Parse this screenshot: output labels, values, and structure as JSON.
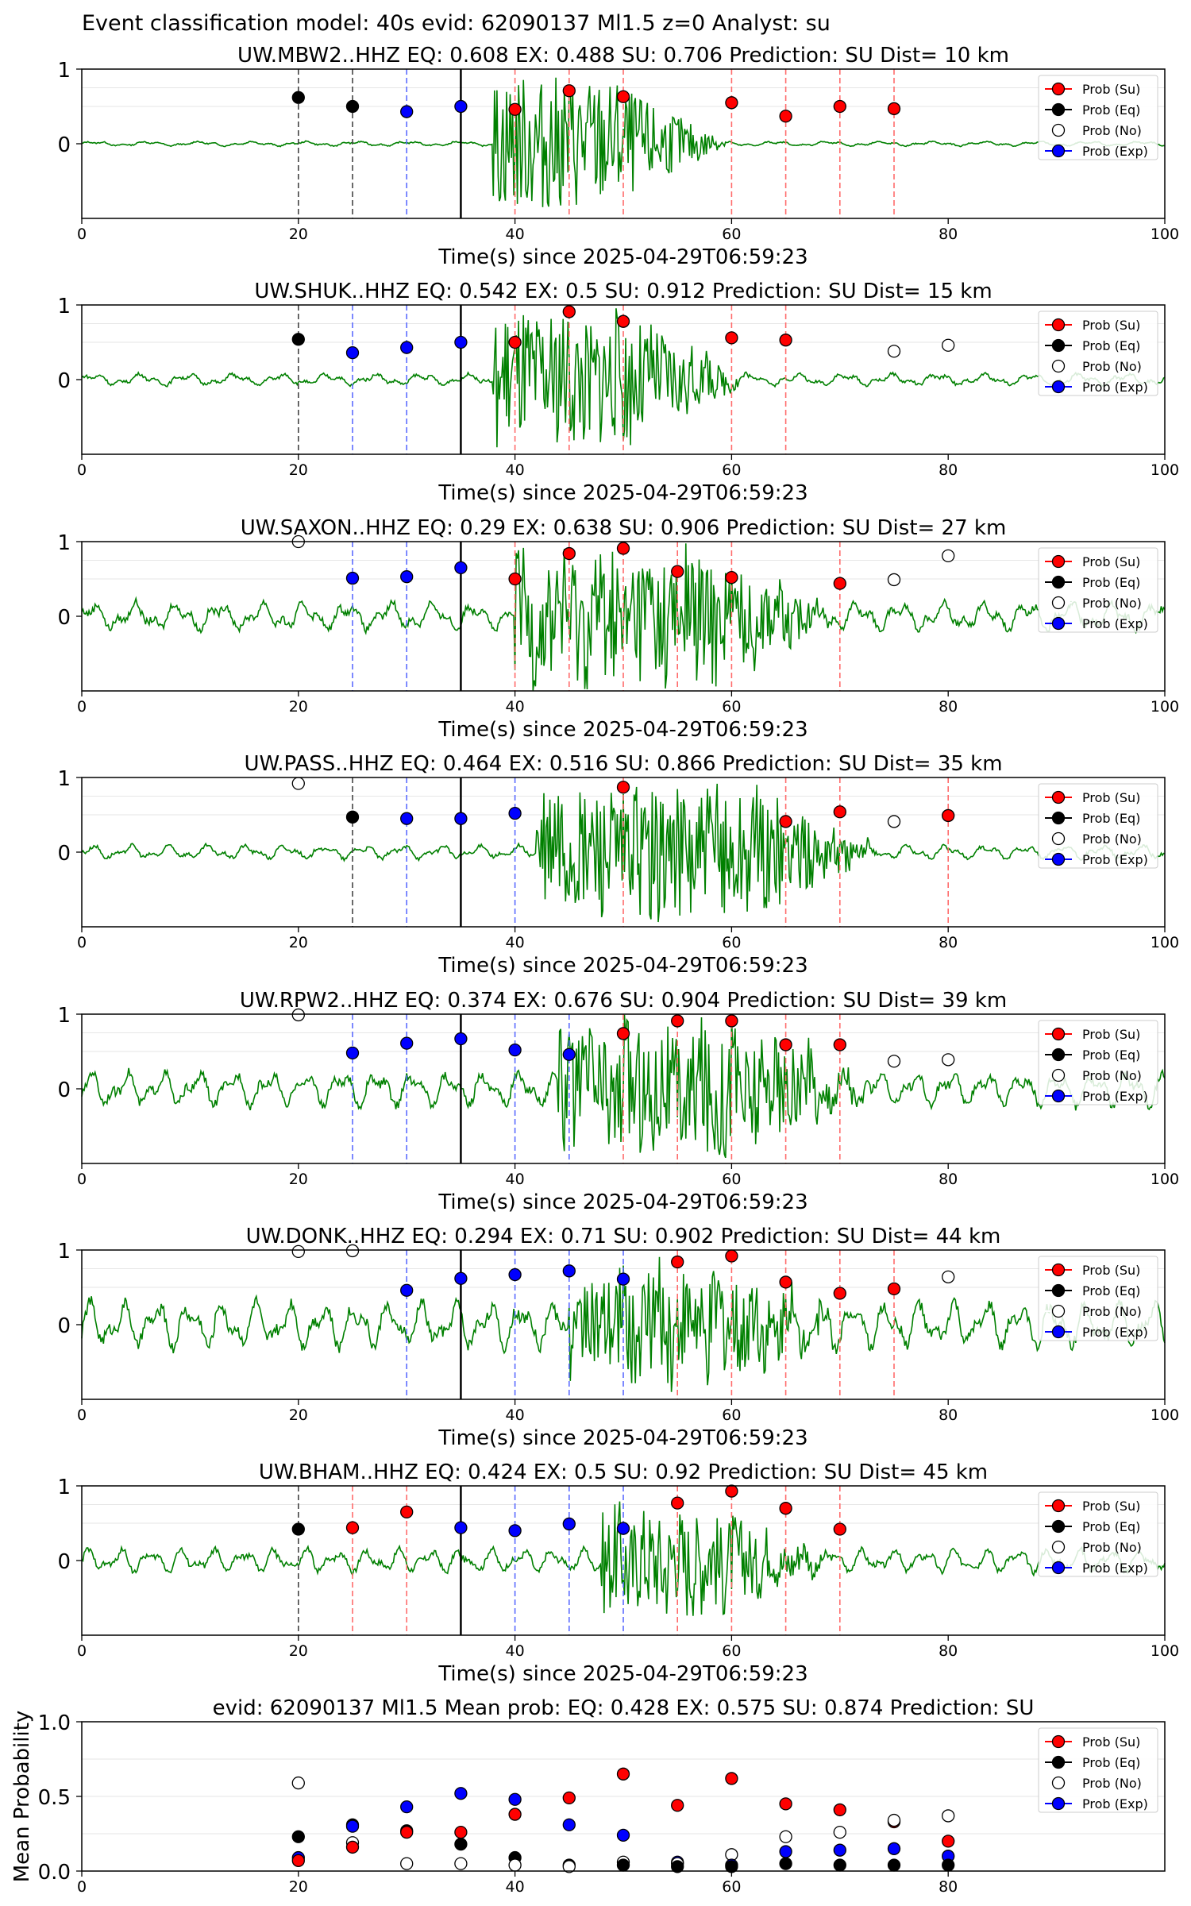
{
  "figure_title": "Event classification model: 40s evid: 62090137 Ml1.5 z=0 Analyst: su",
  "colors": {
    "su": "#ff0000",
    "eq": "#000000",
    "no": "#ffffff",
    "exp": "#0000ff",
    "waveform": "#008000",
    "su_line": "#ff6b6b",
    "exp_line": "#5b6bff",
    "eq_line": "#444444"
  },
  "legend": [
    "Prob (Su)",
    "Prob (Eq)",
    "Prob (No)",
    "Prob (Exp)"
  ],
  "xlabel": "Time(s) since 2025-04-29T06:59:23",
  "xticks": [
    0,
    20,
    40,
    60,
    80,
    100
  ],
  "chart_data": [
    {
      "type": "scatter",
      "title": "UW.MBW2..HHZ   EQ: 0.608  EX: 0.488  SU: 0.706   Prediction: SU    Dist= 10 km",
      "xlim": [
        0,
        100
      ],
      "ylim": [
        -1,
        1
      ],
      "yticks": [
        0,
        1
      ],
      "noise": 0.02,
      "burst": [
        38,
        48,
        0.9
      ],
      "lines": [
        {
          "x": 20,
          "c": "eq"
        },
        {
          "x": 25,
          "c": "eq"
        },
        {
          "x": 30,
          "c": "exp"
        },
        {
          "x": 35,
          "c": "solid"
        },
        {
          "x": 40,
          "c": "su"
        },
        {
          "x": 45,
          "c": "su"
        },
        {
          "x": 50,
          "c": "su"
        },
        {
          "x": 60,
          "c": "su"
        },
        {
          "x": 65,
          "c": "su"
        },
        {
          "x": 70,
          "c": "su"
        },
        {
          "x": 75,
          "c": "su"
        }
      ],
      "points": [
        {
          "x": 20,
          "y": 0.62,
          "c": "eq"
        },
        {
          "x": 25,
          "y": 0.5,
          "c": "eq"
        },
        {
          "x": 30,
          "y": 0.43,
          "c": "exp"
        },
        {
          "x": 35,
          "y": 0.5,
          "c": "exp"
        },
        {
          "x": 40,
          "y": 0.46,
          "c": "su"
        },
        {
          "x": 45,
          "y": 0.71,
          "c": "su"
        },
        {
          "x": 50,
          "y": 0.63,
          "c": "su"
        },
        {
          "x": 60,
          "y": 0.55,
          "c": "su"
        },
        {
          "x": 65,
          "y": 0.37,
          "c": "su"
        },
        {
          "x": 70,
          "y": 0.5,
          "c": "su"
        },
        {
          "x": 75,
          "y": 0.47,
          "c": "su"
        }
      ]
    },
    {
      "type": "scatter",
      "title": "UW.SHUK..HHZ   EQ: 0.542  EX: 0.5  SU: 0.912   Prediction: SU    Dist= 15 km",
      "xlim": [
        0,
        100
      ],
      "ylim": [
        -1,
        1
      ],
      "yticks": [
        0,
        1
      ],
      "noise": 0.05,
      "burst": [
        38,
        50,
        0.9
      ],
      "lines": [
        {
          "x": 20,
          "c": "eq"
        },
        {
          "x": 25,
          "c": "exp"
        },
        {
          "x": 30,
          "c": "exp"
        },
        {
          "x": 35,
          "c": "solid"
        },
        {
          "x": 40,
          "c": "su"
        },
        {
          "x": 45,
          "c": "su"
        },
        {
          "x": 50,
          "c": "su"
        },
        {
          "x": 60,
          "c": "su"
        },
        {
          "x": 65,
          "c": "su"
        }
      ],
      "points": [
        {
          "x": 20,
          "y": 0.54,
          "c": "eq"
        },
        {
          "x": 25,
          "y": 0.36,
          "c": "exp"
        },
        {
          "x": 30,
          "y": 0.43,
          "c": "exp"
        },
        {
          "x": 35,
          "y": 0.5,
          "c": "exp"
        },
        {
          "x": 40,
          "y": 0.5,
          "c": "su"
        },
        {
          "x": 45,
          "y": 0.91,
          "c": "su"
        },
        {
          "x": 50,
          "y": 0.78,
          "c": "su"
        },
        {
          "x": 60,
          "y": 0.56,
          "c": "su"
        },
        {
          "x": 65,
          "y": 0.53,
          "c": "su"
        },
        {
          "x": 75,
          "y": 0.38,
          "c": "no"
        },
        {
          "x": 80,
          "y": 0.46,
          "c": "no"
        }
      ]
    },
    {
      "type": "scatter",
      "title": "UW.SAXON..HHZ   EQ: 0.29  EX: 0.638  SU: 0.906   Prediction: SU    Dist= 27 km",
      "xlim": [
        0,
        100
      ],
      "ylim": [
        -1,
        1
      ],
      "yticks": [
        0,
        1
      ],
      "noise": 0.12,
      "burst": [
        40,
        58,
        0.9
      ],
      "lines": [
        {
          "x": 25,
          "c": "exp"
        },
        {
          "x": 30,
          "c": "exp"
        },
        {
          "x": 35,
          "c": "solid"
        },
        {
          "x": 40,
          "c": "su"
        },
        {
          "x": 45,
          "c": "su"
        },
        {
          "x": 50,
          "c": "su"
        },
        {
          "x": 55,
          "c": "su"
        },
        {
          "x": 60,
          "c": "su"
        },
        {
          "x": 70,
          "c": "su"
        }
      ],
      "points": [
        {
          "x": 20,
          "y": 1.0,
          "c": "no"
        },
        {
          "x": 25,
          "y": 0.51,
          "c": "exp"
        },
        {
          "x": 30,
          "y": 0.53,
          "c": "exp"
        },
        {
          "x": 35,
          "y": 0.65,
          "c": "exp"
        },
        {
          "x": 40,
          "y": 0.5,
          "c": "su"
        },
        {
          "x": 45,
          "y": 0.84,
          "c": "su"
        },
        {
          "x": 50,
          "y": 0.91,
          "c": "su"
        },
        {
          "x": 55,
          "y": 0.6,
          "c": "su"
        },
        {
          "x": 60,
          "y": 0.52,
          "c": "su"
        },
        {
          "x": 70,
          "y": 0.44,
          "c": "su"
        },
        {
          "x": 75,
          "y": 0.49,
          "c": "no"
        },
        {
          "x": 80,
          "y": 0.81,
          "c": "no"
        }
      ]
    },
    {
      "type": "scatter",
      "title": "UW.PASS..HHZ   EQ: 0.464  EX: 0.516  SU: 0.866   Prediction: SU    Dist= 35 km",
      "xlim": [
        0,
        100
      ],
      "ylim": [
        -1,
        1
      ],
      "yticks": [
        0,
        1
      ],
      "noise": 0.06,
      "burst": [
        42,
        62,
        0.9
      ],
      "lines": [
        {
          "x": 25,
          "c": "eq"
        },
        {
          "x": 30,
          "c": "exp"
        },
        {
          "x": 35,
          "c": "solid"
        },
        {
          "x": 40,
          "c": "exp"
        },
        {
          "x": 50,
          "c": "su"
        },
        {
          "x": 65,
          "c": "su"
        },
        {
          "x": 70,
          "c": "su"
        },
        {
          "x": 80,
          "c": "su"
        }
      ],
      "points": [
        {
          "x": 20,
          "y": 0.92,
          "c": "no"
        },
        {
          "x": 25,
          "y": 0.47,
          "c": "eq"
        },
        {
          "x": 30,
          "y": 0.45,
          "c": "exp"
        },
        {
          "x": 35,
          "y": 0.45,
          "c": "exp"
        },
        {
          "x": 40,
          "y": 0.52,
          "c": "exp"
        },
        {
          "x": 50,
          "y": 0.87,
          "c": "su"
        },
        {
          "x": 65,
          "y": 0.41,
          "c": "su"
        },
        {
          "x": 70,
          "y": 0.54,
          "c": "su"
        },
        {
          "x": 75,
          "y": 0.41,
          "c": "no"
        },
        {
          "x": 80,
          "y": 0.49,
          "c": "su"
        }
      ]
    },
    {
      "type": "scatter",
      "title": "UW.RPW2..HHZ   EQ: 0.374  EX: 0.676  SU: 0.904   Prediction: SU    Dist= 39 km",
      "xlim": [
        0,
        100
      ],
      "ylim": [
        -1,
        1
      ],
      "yticks": [
        0,
        1
      ],
      "noise": 0.15,
      "burst": [
        44,
        62,
        0.85
      ],
      "lines": [
        {
          "x": 25,
          "c": "exp"
        },
        {
          "x": 30,
          "c": "exp"
        },
        {
          "x": 35,
          "c": "solid"
        },
        {
          "x": 40,
          "c": "exp"
        },
        {
          "x": 45,
          "c": "exp"
        },
        {
          "x": 50,
          "c": "su"
        },
        {
          "x": 55,
          "c": "su"
        },
        {
          "x": 60,
          "c": "su"
        },
        {
          "x": 65,
          "c": "su"
        },
        {
          "x": 70,
          "c": "su"
        }
      ],
      "points": [
        {
          "x": 20,
          "y": 0.99,
          "c": "no"
        },
        {
          "x": 25,
          "y": 0.48,
          "c": "exp"
        },
        {
          "x": 30,
          "y": 0.61,
          "c": "exp"
        },
        {
          "x": 35,
          "y": 0.67,
          "c": "exp"
        },
        {
          "x": 40,
          "y": 0.52,
          "c": "exp"
        },
        {
          "x": 45,
          "y": 0.46,
          "c": "exp"
        },
        {
          "x": 50,
          "y": 0.74,
          "c": "su"
        },
        {
          "x": 55,
          "y": 0.91,
          "c": "su"
        },
        {
          "x": 60,
          "y": 0.91,
          "c": "su"
        },
        {
          "x": 65,
          "y": 0.59,
          "c": "su"
        },
        {
          "x": 70,
          "y": 0.59,
          "c": "su"
        },
        {
          "x": 75,
          "y": 0.37,
          "c": "no"
        },
        {
          "x": 80,
          "y": 0.39,
          "c": "no"
        }
      ]
    },
    {
      "type": "scatter",
      "title": "UW.DONK..HHZ   EQ: 0.294  EX: 0.71  SU: 0.902   Prediction: SU    Dist= 44 km",
      "xlim": [
        0,
        100
      ],
      "ylim": [
        -1,
        1
      ],
      "yticks": [
        0,
        1
      ],
      "noise": 0.2,
      "burst": [
        45,
        60,
        0.7
      ],
      "lines": [
        {
          "x": 30,
          "c": "exp"
        },
        {
          "x": 35,
          "c": "solid"
        },
        {
          "x": 40,
          "c": "exp"
        },
        {
          "x": 45,
          "c": "exp"
        },
        {
          "x": 50,
          "c": "exp"
        },
        {
          "x": 55,
          "c": "su"
        },
        {
          "x": 60,
          "c": "su"
        },
        {
          "x": 65,
          "c": "su"
        },
        {
          "x": 70,
          "c": "su"
        },
        {
          "x": 75,
          "c": "su"
        }
      ],
      "points": [
        {
          "x": 20,
          "y": 0.98,
          "c": "no"
        },
        {
          "x": 25,
          "y": 0.99,
          "c": "no"
        },
        {
          "x": 30,
          "y": 0.46,
          "c": "exp"
        },
        {
          "x": 35,
          "y": 0.62,
          "c": "exp"
        },
        {
          "x": 40,
          "y": 0.67,
          "c": "exp"
        },
        {
          "x": 45,
          "y": 0.72,
          "c": "exp"
        },
        {
          "x": 50,
          "y": 0.61,
          "c": "exp"
        },
        {
          "x": 55,
          "y": 0.84,
          "c": "su"
        },
        {
          "x": 60,
          "y": 0.92,
          "c": "su"
        },
        {
          "x": 65,
          "y": 0.57,
          "c": "su"
        },
        {
          "x": 70,
          "y": 0.42,
          "c": "su"
        },
        {
          "x": 75,
          "y": 0.48,
          "c": "su"
        },
        {
          "x": 80,
          "y": 0.64,
          "c": "no"
        }
      ]
    },
    {
      "type": "scatter",
      "title": "UW.BHAM..HHZ   EQ: 0.424  EX: 0.5  SU: 0.92   Prediction: SU    Dist= 45 km",
      "xlim": [
        0,
        100
      ],
      "ylim": [
        -1,
        1
      ],
      "yticks": [
        0,
        1
      ],
      "noise": 0.1,
      "burst": [
        48,
        58,
        0.7
      ],
      "lines": [
        {
          "x": 20,
          "c": "eq"
        },
        {
          "x": 25,
          "c": "su"
        },
        {
          "x": 30,
          "c": "su"
        },
        {
          "x": 35,
          "c": "solid"
        },
        {
          "x": 40,
          "c": "exp"
        },
        {
          "x": 45,
          "c": "exp"
        },
        {
          "x": 50,
          "c": "exp"
        },
        {
          "x": 55,
          "c": "su"
        },
        {
          "x": 60,
          "c": "su"
        },
        {
          "x": 65,
          "c": "su"
        },
        {
          "x": 70,
          "c": "su"
        }
      ],
      "points": [
        {
          "x": 20,
          "y": 0.42,
          "c": "eq"
        },
        {
          "x": 25,
          "y": 0.44,
          "c": "su"
        },
        {
          "x": 30,
          "y": 0.65,
          "c": "su"
        },
        {
          "x": 35,
          "y": 0.44,
          "c": "exp"
        },
        {
          "x": 40,
          "y": 0.4,
          "c": "exp"
        },
        {
          "x": 45,
          "y": 0.49,
          "c": "exp"
        },
        {
          "x": 50,
          "y": 0.43,
          "c": "exp"
        },
        {
          "x": 55,
          "y": 0.77,
          "c": "su"
        },
        {
          "x": 60,
          "y": 0.93,
          "c": "su"
        },
        {
          "x": 65,
          "y": 0.7,
          "c": "su"
        },
        {
          "x": 70,
          "y": 0.42,
          "c": "su"
        }
      ]
    },
    {
      "type": "scatter",
      "title": "evid: 62090137  Ml1.5   Mean prob:   EQ: 0.428  EX: 0.575  SU: 0.874   Prediction: SU",
      "ylabel": "Mean Probability",
      "xlim": [
        0,
        100
      ],
      "ylim": [
        0,
        1
      ],
      "yticks": [
        0.0,
        0.5,
        1.0
      ],
      "xticks_shown": [
        0,
        20,
        40,
        60,
        80
      ],
      "noise": 0,
      "burst": null,
      "lines": [],
      "points": [
        {
          "x": 20,
          "y": 0.59,
          "c": "no"
        },
        {
          "x": 20,
          "y": 0.23,
          "c": "eq"
        },
        {
          "x": 20,
          "y": 0.09,
          "c": "exp"
        },
        {
          "x": 20,
          "y": 0.07,
          "c": "su"
        },
        {
          "x": 25,
          "y": 0.31,
          "c": "eq"
        },
        {
          "x": 25,
          "y": 0.3,
          "c": "exp"
        },
        {
          "x": 25,
          "y": 0.19,
          "c": "no"
        },
        {
          "x": 25,
          "y": 0.16,
          "c": "su"
        },
        {
          "x": 30,
          "y": 0.43,
          "c": "exp"
        },
        {
          "x": 30,
          "y": 0.27,
          "c": "eq"
        },
        {
          "x": 30,
          "y": 0.26,
          "c": "su"
        },
        {
          "x": 30,
          "y": 0.05,
          "c": "no"
        },
        {
          "x": 35,
          "y": 0.52,
          "c": "exp"
        },
        {
          "x": 35,
          "y": 0.26,
          "c": "su"
        },
        {
          "x": 35,
          "y": 0.18,
          "c": "eq"
        },
        {
          "x": 35,
          "y": 0.05,
          "c": "no"
        },
        {
          "x": 40,
          "y": 0.48,
          "c": "exp"
        },
        {
          "x": 40,
          "y": 0.38,
          "c": "su"
        },
        {
          "x": 40,
          "y": 0.09,
          "c": "eq"
        },
        {
          "x": 40,
          "y": 0.04,
          "c": "no"
        },
        {
          "x": 45,
          "y": 0.49,
          "c": "su"
        },
        {
          "x": 45,
          "y": 0.31,
          "c": "exp"
        },
        {
          "x": 45,
          "y": 0.04,
          "c": "eq"
        },
        {
          "x": 45,
          "y": 0.03,
          "c": "no"
        },
        {
          "x": 50,
          "y": 0.65,
          "c": "su"
        },
        {
          "x": 50,
          "y": 0.24,
          "c": "exp"
        },
        {
          "x": 50,
          "y": 0.06,
          "c": "no"
        },
        {
          "x": 50,
          "y": 0.04,
          "c": "eq"
        },
        {
          "x": 55,
          "y": 0.44,
          "c": "su"
        },
        {
          "x": 55,
          "y": 0.06,
          "c": "exp"
        },
        {
          "x": 55,
          "y": 0.05,
          "c": "no"
        },
        {
          "x": 55,
          "y": 0.03,
          "c": "eq"
        },
        {
          "x": 60,
          "y": 0.62,
          "c": "su"
        },
        {
          "x": 60,
          "y": 0.11,
          "c": "no"
        },
        {
          "x": 60,
          "y": 0.04,
          "c": "exp"
        },
        {
          "x": 60,
          "y": 0.03,
          "c": "eq"
        },
        {
          "x": 65,
          "y": 0.45,
          "c": "su"
        },
        {
          "x": 65,
          "y": 0.23,
          "c": "no"
        },
        {
          "x": 65,
          "y": 0.13,
          "c": "exp"
        },
        {
          "x": 65,
          "y": 0.05,
          "c": "eq"
        },
        {
          "x": 70,
          "y": 0.41,
          "c": "su"
        },
        {
          "x": 70,
          "y": 0.26,
          "c": "no"
        },
        {
          "x": 70,
          "y": 0.14,
          "c": "exp"
        },
        {
          "x": 70,
          "y": 0.04,
          "c": "eq"
        },
        {
          "x": 75,
          "y": 0.33,
          "c": "su"
        },
        {
          "x": 75,
          "y": 0.34,
          "c": "no"
        },
        {
          "x": 75,
          "y": 0.15,
          "c": "exp"
        },
        {
          "x": 75,
          "y": 0.04,
          "c": "eq"
        },
        {
          "x": 80,
          "y": 0.37,
          "c": "no"
        },
        {
          "x": 80,
          "y": 0.2,
          "c": "su"
        },
        {
          "x": 80,
          "y": 0.1,
          "c": "exp"
        },
        {
          "x": 80,
          "y": 0.04,
          "c": "eq"
        }
      ]
    }
  ]
}
